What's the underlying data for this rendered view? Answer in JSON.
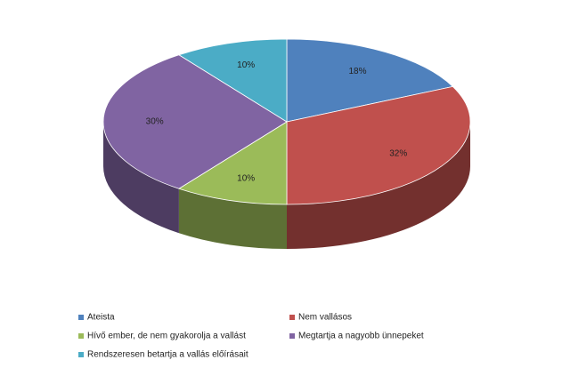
{
  "chart_data": {
    "type": "pie",
    "categories": [
      "Ateista",
      "Nem vallásos",
      "Hívő ember, de nem gyakorolja a vallást",
      "Megtartja a nagyobb ünnepeket",
      "Rendszeresen betartja a vallás előírásait"
    ],
    "values": [
      18,
      32,
      10,
      30,
      10
    ],
    "value_labels": [
      "18%",
      "32%",
      "10%",
      "30%",
      "10%"
    ],
    "colors": [
      "#4f81bd",
      "#c0504d",
      "#9bbb59",
      "#8064a2",
      "#4bacc6"
    ],
    "legend": "bottom"
  }
}
